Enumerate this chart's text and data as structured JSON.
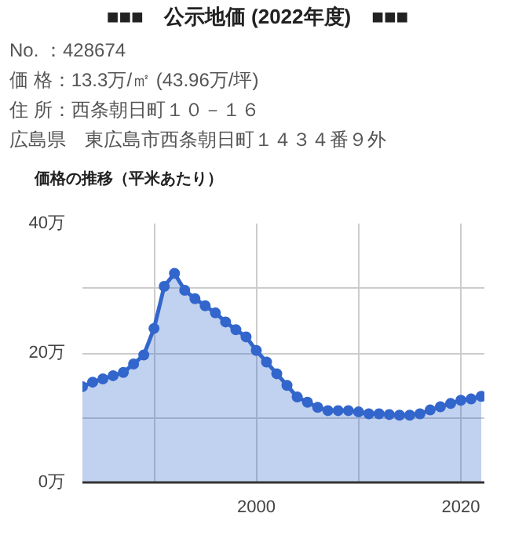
{
  "chart_data": {
    "type": "area",
    "title": "■■■　公示地価 (2022年度)　■■■",
    "annotations": [
      "No. ：428674",
      "価 格：13.3万/㎡ (43.96万/坪)",
      "住 所：西条朝日町１０－１６",
      "広島県　東広島市西条朝日町１４３４番９外"
    ],
    "subtitle": "価格の推移（平米あたり）",
    "x": [
      1983,
      1984,
      1985,
      1986,
      1987,
      1988,
      1989,
      1990,
      1991,
      1992,
      1993,
      1994,
      1995,
      1996,
      1997,
      1998,
      1999,
      2000,
      2001,
      2002,
      2003,
      2004,
      2005,
      2006,
      2007,
      2008,
      2009,
      2010,
      2011,
      2012,
      2013,
      2014,
      2015,
      2016,
      2017,
      2018,
      2019,
      2020,
      2021,
      2022
    ],
    "series": [
      {
        "color": "#3366cc",
        "values": [
          14.8,
          15.5,
          16.0,
          16.5,
          17.0,
          18.3,
          19.7,
          23.8,
          30.3,
          32.3,
          29.7,
          28.4,
          27.3,
          26.2,
          24.8,
          23.6,
          22.5,
          20.4,
          18.6,
          16.8,
          15.0,
          13.2,
          12.4,
          11.6,
          11.1,
          11.1,
          11.1,
          10.9,
          10.6,
          10.6,
          10.5,
          10.4,
          10.4,
          10.6,
          11.2,
          11.7,
          12.2,
          12.7,
          12.9,
          13.3
        ]
      }
    ],
    "xlim": [
      1983,
      2022.3
    ],
    "ylim": [
      0,
      40
    ],
    "xticks": [
      {
        "value": 1990,
        "label": null
      },
      2000,
      {
        "value": 2010,
        "label": null
      },
      2020
    ],
    "yticks": [
      {
        "value": 0,
        "label": "0万"
      },
      {
        "value": 10,
        "label": null
      },
      {
        "value": 20,
        "label": "20万"
      },
      {
        "value": 30,
        "label": null
      },
      {
        "value": 40,
        "label": "40万"
      }
    ],
    "grid": true,
    "marker": "circle"
  }
}
